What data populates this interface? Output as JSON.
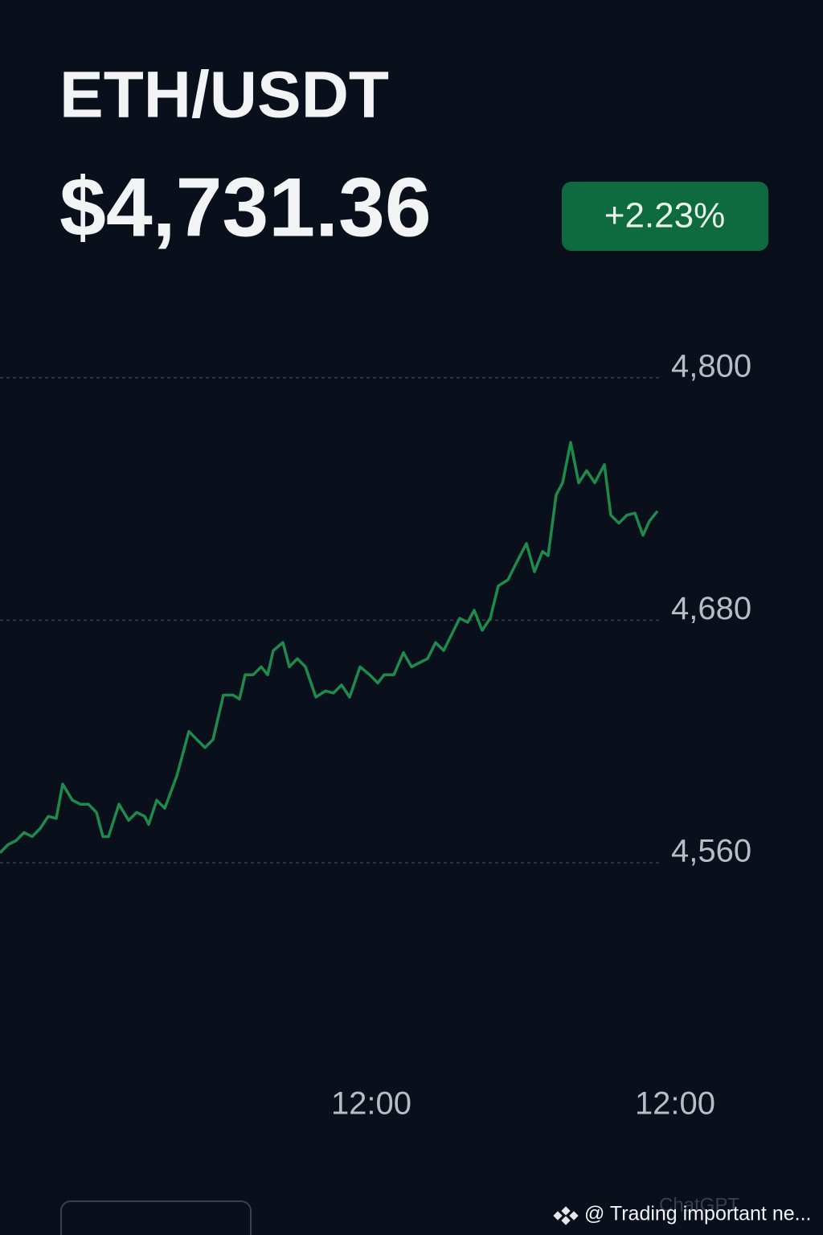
{
  "header": {
    "pair": "ETH/USDT",
    "price": "$4,731.36",
    "change": "+2.23%"
  },
  "chart_data": {
    "type": "line",
    "color": "#1e8a4c",
    "x": [
      0,
      1,
      2,
      3,
      4,
      5,
      6,
      7,
      7.8,
      9,
      10,
      11,
      12,
      12.8,
      13.5,
      14.8,
      16,
      17,
      18,
      18.5,
      19.5,
      20.5,
      22,
      23.5,
      24.5,
      25.5,
      26.5,
      27.8,
      29,
      29.8,
      30.5,
      31.5,
      32.5,
      33.3,
      34,
      35.2,
      36,
      37,
      38,
      39.3,
      40.5,
      41.5,
      42.5,
      43.5,
      44.8,
      46,
      47,
      47.8,
      49,
      50.2,
      51.2,
      52.2,
      53.2,
      54.2,
      55.2,
      56.2,
      57.2,
      58.2,
      59,
      60,
      61,
      62,
      63.2,
      64.2,
      65.5,
      66.5,
      67.5,
      68.2,
      69.2,
      70,
      71,
      72,
      73,
      74,
      75.2,
      76,
      77,
      78,
      79,
      80,
      80.8,
      81.8
    ],
    "values": [
      4565,
      4569,
      4571,
      4575,
      4573,
      4577,
      4583,
      4582,
      4599,
      4591,
      4589,
      4589,
      4585,
      4573,
      4573,
      4589,
      4581,
      4585,
      4583,
      4579,
      4591,
      4587,
      4603,
      4625,
      4621,
      4617,
      4621,
      4643,
      4643,
      4641,
      4653,
      4653,
      4657,
      4653,
      4665,
      4669,
      4657,
      4661,
      4657,
      4642,
      4645,
      4644,
      4648,
      4642,
      4657,
      4653,
      4649,
      4653,
      4653,
      4664,
      4657,
      4659,
      4661,
      4669,
      4665,
      4673,
      4681,
      4679,
      4685,
      4675,
      4681,
      4697,
      4700,
      4708,
      4718,
      4704,
      4714,
      4712,
      4742,
      4748,
      4768,
      4748,
      4754,
      4748,
      4757,
      4732,
      4728,
      4732,
      4733,
      4722,
      4729,
      4734
    ],
    "xlim": [
      0,
      102.4
    ],
    "xticks": [
      {
        "value": 46.2,
        "label": "12:00"
      },
      {
        "value": 84,
        "label": "12:00"
      }
    ],
    "ylim": [
      4500,
      4850
    ],
    "yticks": [
      {
        "value": 4800,
        "label": "4,800"
      },
      {
        "value": 4680,
        "label": "4,680"
      },
      {
        "value": 4560,
        "label": "4,560"
      }
    ],
    "grid": true
  },
  "footer": {
    "notice": "@ Trading important ne...",
    "watermark": "ChatGPT"
  }
}
